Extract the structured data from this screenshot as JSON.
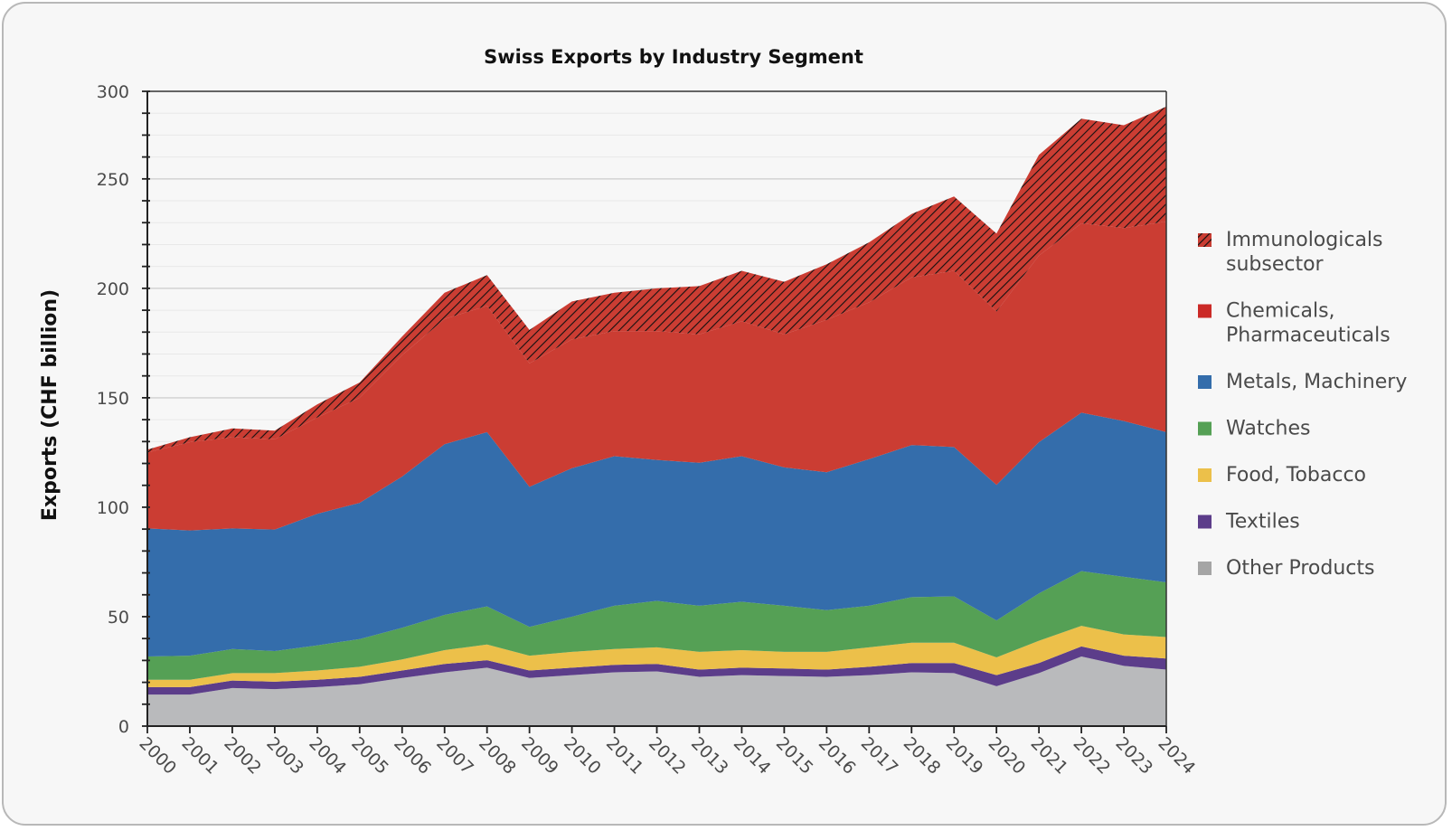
{
  "chart_data": {
    "type": "area",
    "stacked": true,
    "title": "Swiss Exports by Industry Segment",
    "xlabel": "",
    "ylabel": "Exports (CHF billion)",
    "ylim": [
      0,
      290
    ],
    "yticks": [
      0,
      50,
      100,
      150,
      200,
      250,
      300
    ],
    "ytick_labels": [
      "0",
      "50",
      "100",
      "150",
      "200",
      "250",
      "300"
    ],
    "yminor_step": 10,
    "grid": true,
    "legend_position": "right",
    "x": [
      2000,
      2001,
      2002,
      2003,
      2004,
      2005,
      2006,
      2007,
      2008,
      2009,
      2010,
      2011,
      2012,
      2013,
      2014,
      2015,
      2016,
      2017,
      2018,
      2019,
      2020,
      2021,
      2022,
      2023,
      2024
    ],
    "x_labels": [
      "2000",
      "2001",
      "2002",
      "2003",
      "2004",
      "2005",
      "2006",
      "2007",
      "2008",
      "2009",
      "2010",
      "2011",
      "2012",
      "2013",
      "2014",
      "2015",
      "2016",
      "2017",
      "2018",
      "2019",
      "2020",
      "2021",
      "2022",
      "2023",
      "2024"
    ],
    "series": [
      {
        "name": "Other Products",
        "color": "#b9babc",
        "pattern": "none",
        "values": [
          14.4,
          14.4,
          17.4,
          16.9,
          17.8,
          19.1,
          22.0,
          24.6,
          26.7,
          22.0,
          23.3,
          24.6,
          25.0,
          22.5,
          23.3,
          22.9,
          22.5,
          23.3,
          24.6,
          24.2,
          18.2,
          24.2,
          31.8,
          27.5,
          25.8
        ]
      },
      {
        "name": "Textiles",
        "color": "#5c3d8a",
        "pattern": "none",
        "values": [
          3.4,
          3.4,
          3.4,
          3.4,
          3.4,
          3.4,
          3.4,
          3.8,
          3.4,
          3.4,
          3.4,
          3.4,
          3.4,
          3.3,
          3.4,
          3.4,
          3.3,
          3.8,
          4.2,
          4.6,
          5.1,
          4.6,
          4.6,
          4.7,
          5.1
        ]
      },
      {
        "name": "Food, Tobacco",
        "color": "#ecc04a",
        "pattern": "none",
        "values": [
          3.4,
          3.4,
          3.4,
          3.9,
          4.2,
          4.6,
          5.1,
          6.3,
          7.2,
          6.8,
          7.2,
          7.2,
          7.6,
          8.1,
          8.0,
          7.6,
          8.1,
          8.9,
          9.3,
          9.3,
          8.1,
          10.2,
          9.4,
          9.7,
          9.8
        ]
      },
      {
        "name": "Watches",
        "color": "#55a055",
        "pattern": "none",
        "values": [
          10.6,
          11.0,
          11.0,
          10.1,
          11.5,
          12.7,
          14.4,
          16.1,
          17.4,
          13.1,
          16.1,
          19.8,
          21.2,
          21.1,
          22.1,
          21.1,
          19.1,
          19.0,
          20.8,
          21.2,
          16.9,
          21.6,
          25.0,
          26.3,
          25.0
        ]
      },
      {
        "name": "Metals, Machinery",
        "color": "#346dab",
        "pattern": "none",
        "values": [
          58.5,
          57.2,
          55.1,
          55.5,
          60.1,
          62.2,
          69.1,
          78.0,
          79.6,
          64.0,
          67.8,
          68.3,
          64.4,
          65.3,
          66.5,
          63.2,
          63.0,
          67.0,
          69.5,
          68.2,
          61.9,
          69.1,
          72.4,
          71.2,
          68.6
        ]
      },
      {
        "name": "Chemicals, Pharmaceuticals",
        "color": "#cb3d33",
        "pattern": "none",
        "values": [
          34.7,
          40.3,
          41.7,
          41.2,
          44.0,
          48.0,
          55.5,
          57.2,
          57.7,
          56.4,
          58.9,
          57.2,
          58.9,
          58.7,
          61.7,
          60.8,
          69.6,
          71.6,
          76.6,
          80.5,
          79.2,
          85.3,
          86.5,
          88.1,
          96.2
        ]
      },
      {
        "name": "Immunologicals subsector",
        "color": "#cb3d33",
        "pattern": "hatch",
        "values": [
          1.3,
          2.3,
          4.0,
          4.0,
          6.0,
          7.0,
          8.5,
          12.0,
          14.0,
          15.3,
          17.3,
          17.5,
          19.5,
          22.0,
          23.0,
          24.0,
          25.4,
          27.4,
          29.0,
          34.0,
          35.6,
          46.0,
          47.8,
          47.0,
          52.5
        ]
      }
    ],
    "legend_order": [
      "Immunologicals subsector",
      "Chemicals, Pharmaceuticals",
      "Metals, Machinery",
      "Watches",
      "Food, Tobacco",
      "Textiles",
      "Other Products"
    ],
    "legend_lines": [
      [
        "Immunologicals",
        "subsector"
      ],
      [
        "Chemicals,",
        "Pharmaceuticals"
      ],
      [
        "Metals, Machinery"
      ],
      [
        "Watches"
      ],
      [
        "Food, Tobacco"
      ],
      [
        "Textiles"
      ],
      [
        "Other Products"
      ]
    ],
    "legend_colors": [
      "#cb3d33",
      "#cb2a27",
      "#346dab",
      "#55a055",
      "#ecc04a",
      "#5c3d8a",
      "#a5a5a5"
    ],
    "legend_patterns": [
      "hatch",
      "none",
      "none",
      "none",
      "none",
      "none",
      "none"
    ]
  }
}
